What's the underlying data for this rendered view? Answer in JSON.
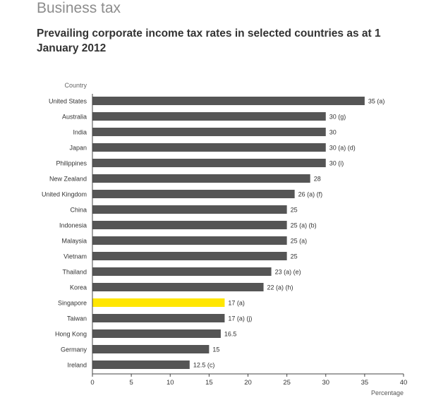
{
  "section_title": "Business tax",
  "chart_title": "Prevailing corporate income tax rates in selected countries as at 1 January 2012",
  "colors": {
    "bar": "#555555",
    "highlight": "#ffe600",
    "axis": "#444444",
    "text": "#333333"
  },
  "chart_data": {
    "type": "bar",
    "orientation": "horizontal",
    "title": "Prevailing corporate income tax rates in selected countries as at 1 January 2012",
    "xlabel": "Percentage",
    "ylabel": "Country",
    "xlim": [
      0,
      40
    ],
    "xticks": [
      0,
      5,
      10,
      15,
      20,
      25,
      30,
      35,
      40
    ],
    "grid": false,
    "categories": [
      "United States",
      "Australia",
      "India",
      "Japan",
      "Philippines",
      "New Zealand",
      "United Kingdom",
      "China",
      "Indonesia",
      "Malaysia",
      "Vietnam",
      "Thailand",
      "Korea",
      "Singapore",
      "Taiwan",
      "Hong Kong",
      "Germany",
      "Ireland"
    ],
    "values": [
      35,
      30,
      30,
      30,
      30,
      28,
      26,
      25,
      25,
      25,
      25,
      23,
      22,
      17,
      17,
      16.5,
      15,
      12.5
    ],
    "data_labels": [
      "35 (a)",
      "30 (g)",
      "30",
      "30 (a) (d)",
      "30 (i)",
      "28",
      "26 (a) (f)",
      "25",
      "25 (a) (b)",
      "25 (a)",
      "25",
      "23 (a) (e)",
      "22 (a) (h)",
      "17 (a)",
      "17 (a) (j)",
      "16.5",
      "15",
      "12.5 (c)"
    ],
    "highlight": "Singapore"
  }
}
